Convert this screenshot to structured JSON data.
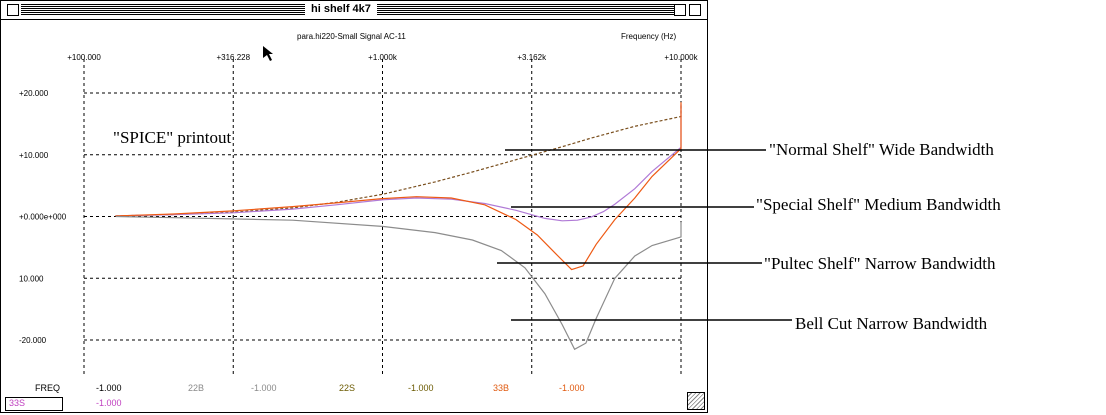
{
  "window": {
    "title": "hi shelf 4k7",
    "subtitle": "para.hi220-Small Signal AC-11",
    "x_unit_label": "Frequency   (Hz)"
  },
  "annotation_inside": "\"SPICE\" printout",
  "callouts": [
    "\"Normal Shelf\" Wide Bandwidth",
    "\"Special Shelf\" Medium Bandwidth",
    "\"Pultec Shelf\" Narrow Bandwidth",
    "Bell Cut Narrow Bandwidth"
  ],
  "footer": {
    "freq_label": "FREQ",
    "row1": [
      "-1.000",
      "22B",
      "-1.000",
      "22S",
      "-1.000",
      "33B",
      "-1.000"
    ],
    "row1_colors": [
      "#000000",
      "#8a8a8a",
      "#8a8a8a",
      "#6b5a00",
      "#6b5a00",
      "#e05a10",
      "#e05a10"
    ],
    "row2_box": "33S",
    "row2_value": "-1.000",
    "row2_color": "#c040c0"
  },
  "colors": {
    "normal_shelf": "#7a4f1e",
    "special_shelf": "#b07ad6",
    "pultec_shelf": "#ee5a14",
    "bell_cut": "#8c8c8c",
    "grid": "#000000"
  },
  "chart_data": {
    "type": "line",
    "x_scale": "log",
    "xlim": [
      50,
      20000
    ],
    "ylim": [
      -25,
      25
    ],
    "x_ticks": [
      100,
      316.228,
      1000,
      3162,
      10000
    ],
    "x_tick_labels": [
      "+100.000",
      "+316.228",
      "+1.000k",
      "+3.162k",
      "+10.000k"
    ],
    "y_ticks": [
      20,
      10,
      0,
      -10,
      -20
    ],
    "y_tick_labels": [
      "+20.000",
      "+10.000",
      "+0.000e+000",
      "10.000",
      "-20.000"
    ],
    "xlabel": "Frequency   (Hz)",
    "ylabel": "",
    "grid": true,
    "series": [
      {
        "color_key": "normal_shelf",
        "dash": "3,2",
        "x": [
          50,
          100,
          200,
          316,
          500,
          700,
          1000,
          1500,
          2000,
          3000,
          4000,
          5000,
          7000,
          10000,
          15000,
          20000
        ],
        "y": [
          0,
          0.1,
          0.3,
          0.7,
          1.4,
          2.3,
          3.6,
          5.6,
          7.2,
          9.6,
          11.3,
          12.7,
          14.6,
          16.2,
          17.4,
          18.2
        ]
      },
      {
        "color_key": "special_shelf",
        "dash": "",
        "x": [
          50,
          100,
          200,
          316,
          500,
          700,
          1000,
          1300,
          1700,
          2200,
          2800,
          3500,
          4000,
          4500,
          5000,
          5500,
          6000,
          7000,
          8000,
          10000,
          13000,
          17000,
          20000
        ],
        "y": [
          0,
          0.1,
          0.3,
          0.6,
          1.2,
          1.9,
          2.7,
          3.0,
          2.8,
          2.1,
          1.0,
          -0.3,
          -0.7,
          -0.6,
          -0.1,
          0.8,
          2.0,
          4.5,
          7.3,
          11.2,
          15.0,
          17.3,
          18.2
        ]
      },
      {
        "color_key": "pultec_shelf",
        "dash": "",
        "x": [
          50,
          100,
          200,
          316,
          500,
          700,
          1000,
          1300,
          1700,
          2200,
          2800,
          3300,
          3800,
          4300,
          4700,
          5200,
          6000,
          7000,
          8000,
          10000,
          13000,
          17000,
          20000
        ],
        "y": [
          0,
          0.1,
          0.4,
          0.9,
          1.6,
          2.2,
          2.9,
          3.2,
          3.0,
          1.9,
          -0.5,
          -3.0,
          -6.0,
          -8.6,
          -8.0,
          -4.5,
          -0.5,
          3.0,
          6.5,
          11.0,
          15.2,
          17.8,
          18.5
        ]
      },
      {
        "color_key": "bell_cut",
        "dash": "",
        "x": [
          50,
          200,
          500,
          1000,
          1500,
          2000,
          2500,
          3000,
          3500,
          4000,
          4400,
          4800,
          5200,
          6000,
          7000,
          8000,
          10000,
          13000,
          17000,
          20000
        ],
        "y": [
          0,
          -0.2,
          -0.6,
          -1.6,
          -2.6,
          -3.8,
          -5.5,
          -8.3,
          -12.5,
          -17.5,
          -21.5,
          -20.5,
          -16.5,
          -10.0,
          -6.4,
          -4.7,
          -3.3,
          -2.3,
          -1.5,
          -0.9
        ]
      }
    ]
  }
}
